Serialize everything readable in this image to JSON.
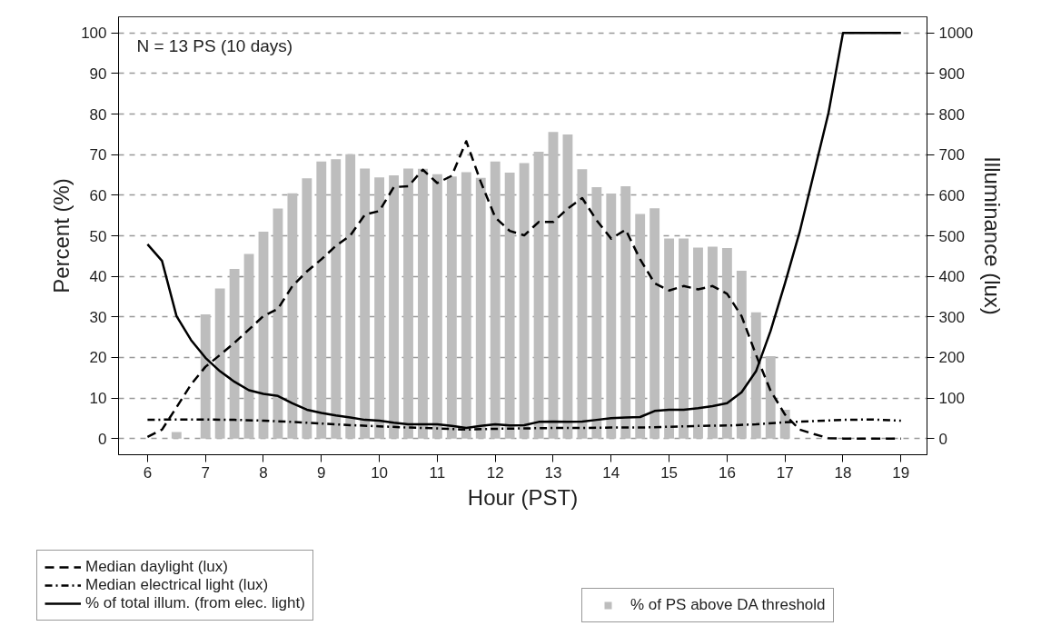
{
  "chart_data": {
    "type": "bar",
    "xlabel": "Hour (PST)",
    "ylabel": "Percent (%)",
    "y2label": "Illuminance (lux)",
    "annotations": [
      "N = 13 PS (10 days)"
    ],
    "xlim": [
      5.5,
      19.45
    ],
    "xticks": [
      6,
      7,
      8,
      9,
      10,
      11,
      12,
      13,
      14,
      15,
      16,
      17,
      18,
      19
    ],
    "ylim": [
      -4,
      104
    ],
    "yticks": [
      0,
      10,
      20,
      30,
      40,
      50,
      60,
      70,
      80,
      90,
      100
    ],
    "y2lim": [
      -40,
      1040
    ],
    "y2ticks": [
      0,
      100,
      200,
      300,
      400,
      500,
      600,
      700,
      800,
      900,
      1000
    ],
    "grid": "y",
    "legend": "bottom",
    "series": [
      {
        "name": "% of PS above DA threshold",
        "color": "#bdbdbd",
        "x": [
          6.5,
          6.75,
          7.0,
          7.25,
          7.5,
          7.75,
          8.0,
          8.25,
          8.5,
          8.75,
          9.0,
          9.25,
          9.5,
          9.75,
          10.0,
          10.25,
          10.5,
          10.75,
          11.0,
          11.25,
          11.5,
          11.75,
          12.0,
          12.25,
          12.5,
          12.75,
          13.0,
          13.25,
          13.5,
          13.75,
          14.0,
          14.25,
          14.5,
          14.75,
          15.0,
          15.25,
          15.5,
          15.75,
          16.0,
          16.25,
          16.5,
          16.75,
          17.0
        ],
        "values": [
          1.6,
          0,
          30.6,
          37.0,
          41.8,
          45.5,
          51.0,
          56.7,
          60.5,
          64.2,
          68.3,
          68.9,
          70.1,
          66.6,
          64.4,
          64.9,
          66.6,
          66.5,
          65.2,
          64.6,
          65.7,
          64.3,
          68.3,
          65.6,
          67.9,
          70.7,
          75.6,
          75.0,
          66.4,
          62.0,
          60.4,
          62.2,
          55.4,
          56.8,
          49.3,
          49.3,
          47.1,
          47.3,
          47.0,
          41.4,
          31.1,
          20.3,
          7.1
        ]
      },
      {
        "name": "Median daylight (lux)",
        "type": "line",
        "axis": "y2",
        "color": "#000000",
        "line_style": "dashed",
        "x": [
          6.0,
          6.25,
          6.5,
          6.75,
          7.0,
          7.25,
          7.5,
          7.75,
          8.0,
          8.25,
          8.5,
          8.75,
          9.0,
          9.25,
          9.5,
          9.75,
          10.0,
          10.25,
          10.5,
          10.75,
          11.0,
          11.25,
          11.5,
          11.75,
          12.0,
          12.25,
          12.5,
          12.75,
          13.0,
          13.25,
          13.5,
          13.75,
          14.0,
          14.25,
          14.5,
          14.75,
          15.0,
          15.25,
          15.5,
          15.75,
          16.0,
          16.25,
          16.5,
          16.75,
          17.0,
          17.25,
          17.5,
          17.75,
          18.0,
          18.5,
          19.0
        ],
        "values": [
          4,
          22,
          77,
          133,
          177,
          206,
          236,
          269,
          302,
          320,
          376,
          412,
          442,
          475,
          501,
          552,
          561,
          620,
          622,
          663,
          630,
          648,
          733,
          633,
          545,
          512,
          501,
          534,
          534,
          567,
          593,
          538,
          493,
          515,
          442,
          383,
          365,
          376,
          368,
          376,
          357,
          302,
          206,
          118,
          59,
          22,
          11,
          1,
          0,
          0,
          0
        ]
      },
      {
        "name": "Median electrical light (lux)",
        "type": "line",
        "axis": "y2",
        "color": "#000000",
        "line_style": "dashdot",
        "x": [
          6.0,
          6.5,
          7.0,
          7.5,
          8.0,
          8.5,
          9.0,
          9.5,
          10.0,
          10.5,
          11.0,
          11.5,
          12.0,
          12.5,
          13.0,
          13.5,
          14.0,
          14.5,
          15.0,
          15.5,
          16.0,
          16.5,
          17.0,
          17.5,
          18.0,
          18.5,
          19.0
        ],
        "values": [
          46,
          47,
          47,
          46,
          44,
          41,
          37,
          33,
          30,
          27,
          25,
          22,
          24,
          25,
          26,
          26,
          27,
          27,
          29,
          31,
          32,
          35,
          40,
          43,
          46,
          47,
          44
        ]
      },
      {
        "name": "% of total illum. (from elec. light)",
        "type": "line",
        "color": "#000000",
        "line_style": "solid",
        "x": [
          6.0,
          6.25,
          6.5,
          6.75,
          7.0,
          7.25,
          7.5,
          7.75,
          8.0,
          8.25,
          8.5,
          8.75,
          9.0,
          9.25,
          9.5,
          9.75,
          10.0,
          10.25,
          10.5,
          10.75,
          11.0,
          11.25,
          11.5,
          11.75,
          12.0,
          12.25,
          12.5,
          12.75,
          13.0,
          13.25,
          13.5,
          13.75,
          14.0,
          14.25,
          14.5,
          14.75,
          15.0,
          15.25,
          15.5,
          15.75,
          16.0,
          16.25,
          16.5,
          16.75,
          17.0,
          17.25,
          17.5,
          17.75,
          18.0,
          18.5,
          19.0
        ],
        "values": [
          47.9,
          43.8,
          30.2,
          24.3,
          19.9,
          16.6,
          14.0,
          11.9,
          11.0,
          10.5,
          8.7,
          7.1,
          6.3,
          5.7,
          5.2,
          4.6,
          4.4,
          3.9,
          3.5,
          3.5,
          3.5,
          3.1,
          2.6,
          3.1,
          3.5,
          3.2,
          3.3,
          4.1,
          4.2,
          4.1,
          4.2,
          4.6,
          5.0,
          5.2,
          5.3,
          6.8,
          7.1,
          7.1,
          7.5,
          8.0,
          8.7,
          11.4,
          16.6,
          26.5,
          38.3,
          50.8,
          65.5,
          80.3,
          100,
          100,
          100
        ]
      }
    ]
  }
}
